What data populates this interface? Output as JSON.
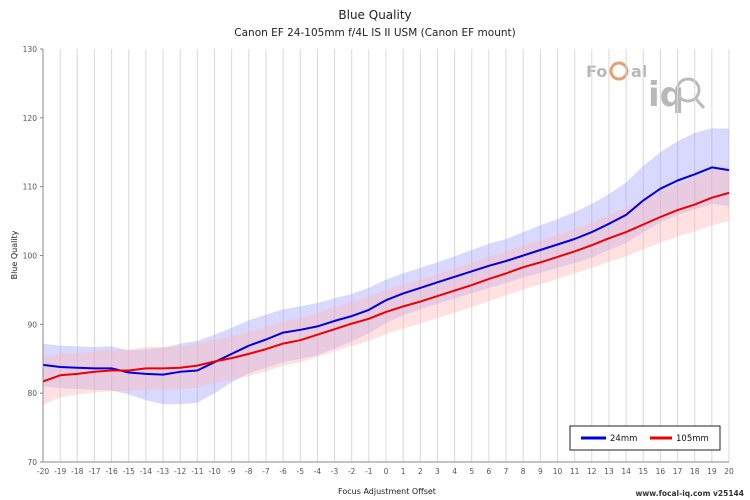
{
  "chart_data": {
    "type": "line",
    "title": "Blue Quality",
    "subtitle": "Canon EF 24-105mm f/4L IS II USM (Canon EF mount)",
    "xlabel": "Focus Adjustment Offset",
    "ylabel": "Blue Quality",
    "xlim": [
      -20,
      20
    ],
    "ylim": [
      70,
      130
    ],
    "y_ticks": [
      70,
      80,
      90,
      100,
      110,
      120,
      130
    ],
    "grid": "vertical",
    "legend_position": "bottom-right",
    "x": [
      -20,
      -19,
      -18,
      -17,
      -16,
      -15,
      -14,
      -13,
      -12,
      -11,
      -10,
      -9,
      -8,
      -7,
      -6,
      -5,
      -4,
      -3,
      -2,
      -1,
      0,
      1,
      2,
      3,
      4,
      5,
      6,
      7,
      8,
      9,
      10,
      11,
      12,
      13,
      14,
      15,
      16,
      17,
      18,
      19,
      20
    ],
    "series": [
      {
        "name": "24mm",
        "color": "#0000dd",
        "band_color": "#a0a0ff",
        "values": [
          84.1,
          83.8,
          83.7,
          83.6,
          83.6,
          83.0,
          82.8,
          82.7,
          83.1,
          83.3,
          84.5,
          85.7,
          86.9,
          87.8,
          88.8,
          89.2,
          89.7,
          90.5,
          91.2,
          92.1,
          93.5,
          94.5,
          95.3,
          96.1,
          96.9,
          97.7,
          98.5,
          99.2,
          100.0,
          100.8,
          101.6,
          102.4,
          103.4,
          104.6,
          105.9,
          108.0,
          109.7,
          110.9,
          111.8,
          112.8,
          112.4
        ],
        "lower": [
          81.0,
          80.7,
          80.6,
          80.5,
          80.4,
          79.8,
          79.0,
          78.4,
          78.4,
          78.6,
          80.0,
          81.6,
          82.9,
          83.7,
          84.5,
          85.0,
          85.5,
          86.5,
          87.5,
          88.7,
          90.2,
          91.3,
          92.2,
          93.0,
          93.8,
          94.5,
          95.3,
          96.0,
          96.8,
          97.5,
          98.2,
          98.9,
          99.7,
          100.8,
          101.8,
          103.4,
          104.8,
          105.9,
          106.7,
          107.5,
          107.2
        ],
        "upper": [
          87.2,
          86.9,
          86.8,
          86.7,
          86.8,
          86.2,
          86.4,
          86.6,
          87.2,
          87.6,
          88.5,
          89.5,
          90.6,
          91.4,
          92.2,
          92.6,
          93.1,
          93.8,
          94.4,
          95.3,
          96.5,
          97.4,
          98.2,
          99.0,
          99.9,
          100.8,
          101.7,
          102.4,
          103.4,
          104.4,
          105.3,
          106.3,
          107.5,
          108.9,
          110.6,
          113.0,
          115.0,
          116.6,
          117.8,
          118.5,
          118.4
        ]
      },
      {
        "name": "105mm",
        "color": "#ee0000",
        "band_color": "#ffb4b4",
        "values": [
          81.7,
          82.6,
          82.8,
          83.1,
          83.3,
          83.3,
          83.6,
          83.6,
          83.7,
          84.0,
          84.6,
          85.1,
          85.7,
          86.4,
          87.2,
          87.7,
          88.5,
          89.3,
          90.1,
          90.8,
          91.8,
          92.6,
          93.3,
          94.1,
          94.9,
          95.7,
          96.6,
          97.4,
          98.3,
          99.0,
          99.8,
          100.6,
          101.5,
          102.5,
          103.4,
          104.5,
          105.6,
          106.6,
          107.4,
          108.4,
          109.1
        ],
        "lower": [
          78.3,
          79.4,
          79.8,
          80.1,
          80.3,
          80.3,
          80.5,
          80.5,
          80.6,
          80.8,
          81.4,
          81.9,
          82.5,
          83.2,
          84.0,
          84.5,
          85.3,
          86.1,
          86.9,
          87.6,
          88.6,
          89.4,
          90.1,
          90.9,
          91.7,
          92.5,
          93.4,
          94.2,
          95.1,
          95.8,
          96.6,
          97.4,
          98.2,
          99.1,
          99.9,
          100.9,
          101.9,
          102.8,
          103.5,
          104.4,
          105.0
        ],
        "upper": [
          85.1,
          85.8,
          85.8,
          86.1,
          86.3,
          86.3,
          86.7,
          86.7,
          86.8,
          87.2,
          87.8,
          88.3,
          88.9,
          89.6,
          90.4,
          90.9,
          91.7,
          92.5,
          93.3,
          94.0,
          95.0,
          95.8,
          96.5,
          97.3,
          98.1,
          98.9,
          99.8,
          100.6,
          101.5,
          102.2,
          103.0,
          103.8,
          104.8,
          105.9,
          106.9,
          108.1,
          109.3,
          110.4,
          111.3,
          112.4,
          113.2
        ]
      }
    ]
  },
  "watermark": {
    "text_left": "Fo",
    "text_c": "C",
    "text_right": "al",
    "text_iq": "iq"
  },
  "footer": "www.focal-iq.com  v25144"
}
